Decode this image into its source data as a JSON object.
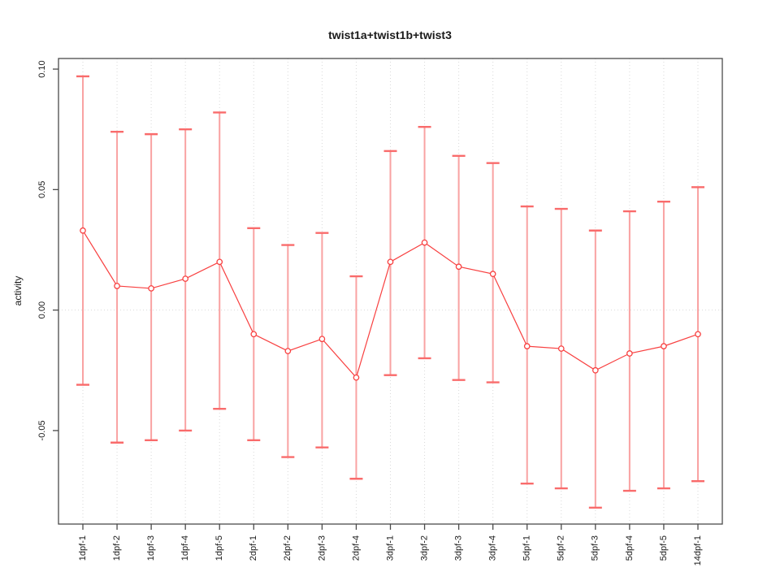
{
  "figure": {
    "title": "twist1a+twist1b+twist3"
  },
  "chart_data": {
    "type": "line",
    "title": "twist1a+twist1b+twist3",
    "xlabel": "",
    "ylabel": "activity",
    "legend": "none",
    "grid": "dotted vertical gridline at every category; dotted horizontal line at y=0",
    "categories": [
      "1dpf-1",
      "1dpf-2",
      "1dpf-3",
      "1dpf-4",
      "1dpf-5",
      "2dpf-1",
      "2dpf-2",
      "2dpf-3",
      "2dpf-4",
      "3dpf-1",
      "3dpf-2",
      "3dpf-3",
      "3dpf-4",
      "5dpf-1",
      "5dpf-2",
      "5dpf-3",
      "5dpf-4",
      "5dpf-5",
      "14dpf-1"
    ],
    "series": [
      {
        "name": "activity",
        "marker": "open-circle",
        "values": [
          0.033,
          0.01,
          0.009,
          0.013,
          0.02,
          -0.01,
          -0.017,
          -0.012,
          -0.028,
          0.02,
          0.028,
          0.018,
          0.015,
          -0.015,
          -0.016,
          -0.025,
          -0.018,
          -0.015,
          -0.01
        ],
        "error_upper": [
          0.097,
          0.074,
          0.073,
          0.075,
          0.082,
          0.034,
          0.027,
          0.032,
          0.014,
          0.066,
          0.076,
          0.064,
          0.061,
          0.043,
          0.042,
          0.033,
          0.041,
          0.045,
          0.051
        ],
        "error_lower": [
          -0.031,
          -0.055,
          -0.054,
          -0.05,
          -0.041,
          -0.054,
          -0.061,
          -0.057,
          -0.07,
          -0.027,
          -0.02,
          -0.029,
          -0.03,
          -0.072,
          -0.074,
          -0.082,
          -0.075,
          -0.074,
          -0.071
        ]
      }
    ],
    "ylim": [
      -0.0888,
      0.1044
    ],
    "yticks": [
      {
        "value": 0.1,
        "label": "0.10"
      },
      {
        "value": 0.05,
        "label": "0.05"
      },
      {
        "value": 0.0,
        "label": "0.00"
      },
      {
        "value": -0.05,
        "label": "-0.05"
      }
    ],
    "colors": {
      "line": "#f84040",
      "point_fill": "#ffffff",
      "error_bar": "#f9a2a2",
      "error_cap": "#f96b6b",
      "grid": "#d9d9d9",
      "zero_line": "#d9d9d9",
      "axis": "#4a4a4a",
      "text": "#1a1a1a",
      "background": "#ffffff"
    }
  }
}
